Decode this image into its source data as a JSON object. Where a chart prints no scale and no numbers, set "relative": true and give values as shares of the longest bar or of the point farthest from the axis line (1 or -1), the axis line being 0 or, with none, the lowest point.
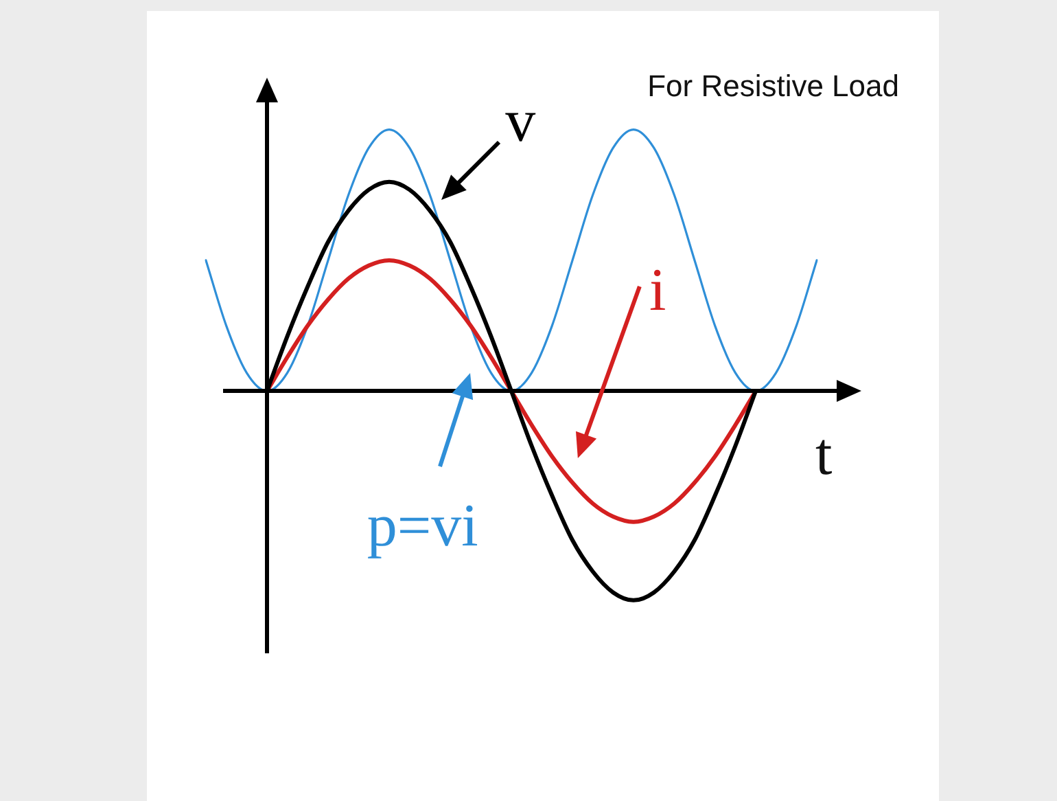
{
  "chart_data": {
    "type": "line",
    "title": "For Resistive Load",
    "xlabel": "t",
    "relative": true,
    "tick_labels": false,
    "marker": "none",
    "line_style": "solid",
    "categories": [
      null,
      null,
      null,
      null,
      null,
      null,
      null,
      null,
      null,
      null,
      null,
      null,
      null,
      null,
      null,
      null,
      null,
      null,
      null,
      null,
      null,
      null,
      null,
      null,
      null,
      null,
      null,
      null,
      null,
      null,
      null
    ],
    "series": [
      {
        "name": "v",
        "color": "#000000",
        "values": [
          null,
          null,
          null,
          0,
          0.21,
          0.4,
          0.57,
          0.69,
          0.77,
          0.8,
          0.77,
          0.69,
          0.57,
          0.4,
          0.21,
          0,
          -0.21,
          -0.4,
          -0.57,
          -0.69,
          -0.77,
          -0.8,
          -0.77,
          -0.69,
          -0.57,
          -0.4,
          -0.21,
          0,
          null,
          null,
          null
        ]
      },
      {
        "name": "i",
        "color": "#d42020",
        "values": [
          null,
          null,
          null,
          0,
          0.13,
          0.25,
          0.35,
          0.43,
          0.48,
          0.5,
          0.48,
          0.43,
          0.35,
          0.25,
          0.13,
          0,
          -0.13,
          -0.25,
          -0.35,
          -0.43,
          -0.48,
          -0.5,
          -0.48,
          -0.43,
          -0.35,
          -0.25,
          -0.13,
          0,
          null,
          null,
          null
        ]
      },
      {
        "name": "p=vi",
        "color": "#2f8fd8",
        "values": [
          0.5,
          0.25,
          0.07,
          0,
          0.07,
          0.25,
          0.5,
          0.75,
          0.93,
          1,
          0.93,
          0.75,
          0.5,
          0.25,
          0.07,
          0,
          0.07,
          0.25,
          0.5,
          0.75,
          0.93,
          1,
          0.93,
          0.75,
          0.5,
          0.25,
          0.07,
          0,
          0.07,
          0.25,
          0.5
        ]
      }
    ]
  }
}
